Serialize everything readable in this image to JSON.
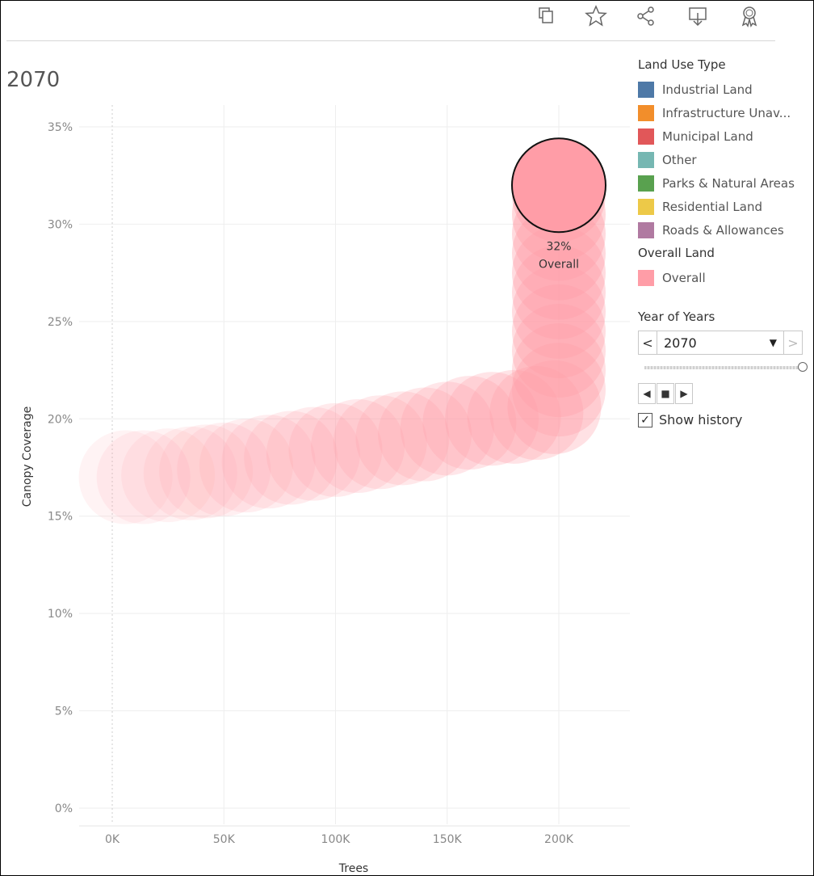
{
  "toolbar": {
    "icons": [
      "duplicate-icon",
      "star-icon",
      "share-icon",
      "download-icon",
      "badge-icon"
    ]
  },
  "view_title": "2070",
  "legend": {
    "land_use_title": "Land Use Type",
    "land_use_items": [
      {
        "label": "Industrial Land",
        "color": "#4e79a7"
      },
      {
        "label": "Infrastructure Unav...",
        "color": "#f28e2b"
      },
      {
        "label": "Municipal Land",
        "color": "#e15759"
      },
      {
        "label": "Other",
        "color": "#76b7b2"
      },
      {
        "label": "Parks & Natural Areas",
        "color": "#59a14f"
      },
      {
        "label": "Residential Land",
        "color": "#edc948"
      },
      {
        "label": "Roads & Allowances",
        "color": "#b07aa1"
      }
    ],
    "overall_title": "Overall Land",
    "overall_items": [
      {
        "label": "Overall",
        "color": "#ff9da7"
      }
    ]
  },
  "controls": {
    "year_title": "Year of Years",
    "year_value": "2070",
    "prev_symbol": "<",
    "next_symbol": ">",
    "show_history_label": "Show history",
    "show_history_checked": true
  },
  "chart_data": {
    "type": "scatter",
    "xlabel": "Trees",
    "ylabel": "Canopy Coverage",
    "x_ticks": [
      "0K",
      "50K",
      "100K",
      "150K",
      "200K"
    ],
    "y_ticks": [
      "0%",
      "5%",
      "10%",
      "15%",
      "20%",
      "25%",
      "30%",
      "35%"
    ],
    "xlim": [
      0,
      230000
    ],
    "ylim": [
      0,
      35
    ],
    "grid": true,
    "legend_position": "right",
    "series": [
      {
        "name": "Overall",
        "color": "#ff9da7",
        "history": [
          {
            "x": 6000,
            "y": 17.0
          },
          {
            "x": 14000,
            "y": 17.0
          },
          {
            "x": 25000,
            "y": 17.1
          },
          {
            "x": 35000,
            "y": 17.2
          },
          {
            "x": 42000,
            "y": 17.3
          },
          {
            "x": 50000,
            "y": 17.4
          },
          {
            "x": 60000,
            "y": 17.6
          },
          {
            "x": 70000,
            "y": 17.8
          },
          {
            "x": 80000,
            "y": 18.0
          },
          {
            "x": 90000,
            "y": 18.2
          },
          {
            "x": 100000,
            "y": 18.4
          },
          {
            "x": 110000,
            "y": 18.6
          },
          {
            "x": 120000,
            "y": 18.8
          },
          {
            "x": 130000,
            "y": 19.0
          },
          {
            "x": 140000,
            "y": 19.2
          },
          {
            "x": 150000,
            "y": 19.5
          },
          {
            "x": 160000,
            "y": 19.8
          },
          {
            "x": 170000,
            "y": 20.0
          },
          {
            "x": 180000,
            "y": 20.1
          },
          {
            "x": 190000,
            "y": 20.3
          },
          {
            "x": 198000,
            "y": 20.6
          },
          {
            "x": 200000,
            "y": 21.5
          },
          {
            "x": 200000,
            "y": 22.5
          },
          {
            "x": 200000,
            "y": 23.5
          },
          {
            "x": 200000,
            "y": 24.5
          },
          {
            "x": 200000,
            "y": 25.5
          },
          {
            "x": 200000,
            "y": 26.5
          },
          {
            "x": 200000,
            "y": 27.5
          },
          {
            "x": 200000,
            "y": 28.5
          },
          {
            "x": 200000,
            "y": 29.5
          },
          {
            "x": 200000,
            "y": 30.5
          },
          {
            "x": 200000,
            "y": 31.5
          }
        ],
        "current": {
          "x": 200000,
          "y": 32.0,
          "label_value": "32%",
          "label_name": "Overall"
        }
      }
    ]
  }
}
